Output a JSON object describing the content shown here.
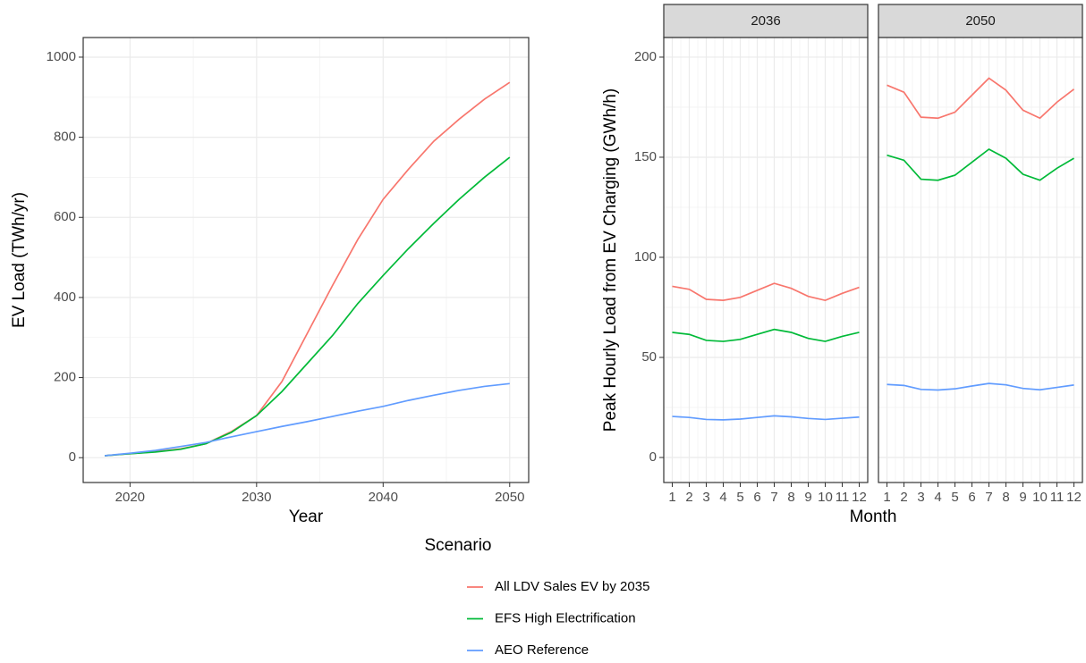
{
  "chart_data": [
    {
      "type": "line",
      "x_label": "Year",
      "y_label": "EV Load (TWh/yr)",
      "x": [
        2018,
        2020,
        2022,
        2024,
        2026,
        2028,
        2030,
        2032,
        2034,
        2036,
        2038,
        2040,
        2042,
        2044,
        2046,
        2048,
        2050
      ],
      "series": [
        {
          "name": "All LDV Sales EV by 2035",
          "color": "#f8766d",
          "values": [
            5,
            10,
            15,
            22,
            35,
            65,
            105,
            190,
            310,
            430,
            545,
            645,
            720,
            790,
            845,
            895,
            937
          ]
        },
        {
          "name": "EFS High Electrification",
          "color": "#00ba38",
          "values": [
            5,
            10,
            14,
            21,
            35,
            63,
            105,
            165,
            235,
            305,
            385,
            455,
            522,
            585,
            645,
            700,
            750
          ]
        },
        {
          "name": "AEO Reference",
          "color": "#619cff",
          "values": [
            5,
            11,
            18,
            28,
            38,
            52,
            65,
            78,
            90,
            103,
            116,
            128,
            143,
            156,
            168,
            178,
            185
          ]
        }
      ],
      "xlim": [
        2016.3,
        2051.5
      ],
      "xticks": [
        2020,
        2030,
        2040,
        2050
      ],
      "ylim": [
        -62,
        1049
      ],
      "yticks": [
        0,
        200,
        400,
        600,
        800,
        1000
      ],
      "grid": true
    },
    {
      "type": "line",
      "x_label": "Month",
      "y_label": "Peak Hourly Load from EV Charging (GWh/h)",
      "x": [
        1,
        2,
        3,
        4,
        5,
        6,
        7,
        8,
        9,
        10,
        11,
        12
      ],
      "xlim": [
        0.5,
        12.5
      ],
      "xticks": [
        1,
        2,
        3,
        4,
        5,
        6,
        7,
        8,
        9,
        10,
        11,
        12
      ],
      "ylim": [
        -12.5,
        209.8
      ],
      "yticks": [
        0,
        50,
        100,
        150,
        200
      ],
      "grid": true,
      "panels": [
        {
          "title": "2036",
          "series": [
            {
              "color": "#f8766d",
              "values": [
                85.5,
                84,
                79,
                78.5,
                80,
                83.5,
                87,
                84.5,
                80.5,
                78.5,
                82,
                85
              ]
            },
            {
              "color": "#00ba38",
              "values": [
                62.5,
                61.5,
                58.5,
                58,
                59,
                61.5,
                64,
                62.5,
                59.5,
                58,
                60.5,
                62.5
              ]
            },
            {
              "color": "#619cff",
              "values": [
                20.5,
                20,
                19,
                18.8,
                19.2,
                20,
                20.8,
                20.3,
                19.5,
                19,
                19.6,
                20.2
              ]
            }
          ]
        },
        {
          "title": "2050",
          "series": [
            {
              "color": "#f8766d",
              "values": [
                186,
                182.5,
                170,
                169.5,
                172.5,
                181,
                189.5,
                183.5,
                173.5,
                169.5,
                177.5,
                184
              ]
            },
            {
              "color": "#00ba38",
              "values": [
                151,
                148.5,
                139,
                138.5,
                141,
                147.5,
                154,
                149.5,
                141.5,
                138.5,
                144.5,
                149.5
              ]
            },
            {
              "color": "#619cff",
              "values": [
                36.5,
                36,
                34,
                33.7,
                34.3,
                35.7,
                37,
                36.3,
                34.5,
                33.8,
                35,
                36.2
              ]
            }
          ]
        }
      ]
    }
  ],
  "legend": {
    "title": "Scenario"
  }
}
